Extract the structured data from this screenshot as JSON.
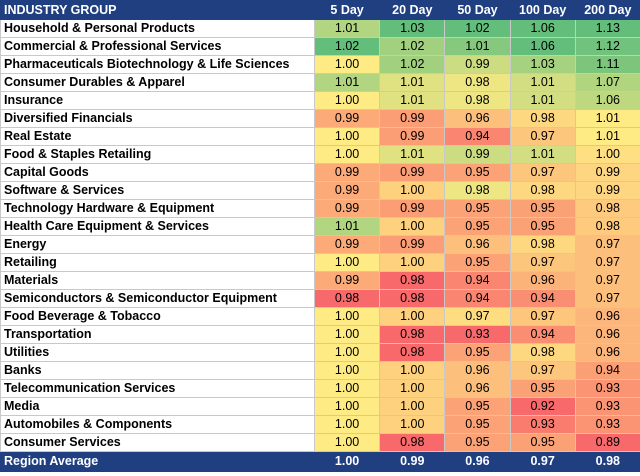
{
  "table": {
    "columns": [
      "INDUSTRY GROUP",
      "5 Day",
      "20 Day",
      "50 Day",
      "100 Day",
      "200 Day"
    ],
    "rows": [
      {
        "name": "Household & Personal Products",
        "values": [
          "1.01",
          "1.03",
          "1.02",
          "1.06",
          "1.13"
        ]
      },
      {
        "name": "Commercial & Professional Services",
        "values": [
          "1.02",
          "1.02",
          "1.01",
          "1.06",
          "1.12"
        ]
      },
      {
        "name": "Pharmaceuticals Biotechnology & Life Sciences",
        "values": [
          "1.00",
          "1.02",
          "0.99",
          "1.03",
          "1.11"
        ]
      },
      {
        "name": "Consumer Durables & Apparel",
        "values": [
          "1.01",
          "1.01",
          "0.98",
          "1.01",
          "1.07"
        ]
      },
      {
        "name": "Insurance",
        "values": [
          "1.00",
          "1.01",
          "0.98",
          "1.01",
          "1.06"
        ]
      },
      {
        "name": "Diversified Financials",
        "values": [
          "0.99",
          "0.99",
          "0.96",
          "0.98",
          "1.01"
        ]
      },
      {
        "name": "Real Estate",
        "values": [
          "1.00",
          "0.99",
          "0.94",
          "0.97",
          "1.01"
        ]
      },
      {
        "name": "Food & Staples Retailing",
        "values": [
          "1.00",
          "1.01",
          "0.99",
          "1.01",
          "1.00"
        ]
      },
      {
        "name": "Capital Goods",
        "values": [
          "0.99",
          "0.99",
          "0.95",
          "0.97",
          "0.99"
        ]
      },
      {
        "name": "Software & Services",
        "values": [
          "0.99",
          "1.00",
          "0.98",
          "0.98",
          "0.99"
        ]
      },
      {
        "name": "Technology Hardware & Equipment",
        "values": [
          "0.99",
          "0.99",
          "0.95",
          "0.95",
          "0.98"
        ]
      },
      {
        "name": "Health Care Equipment & Services",
        "values": [
          "1.01",
          "1.00",
          "0.95",
          "0.95",
          "0.98"
        ]
      },
      {
        "name": "Energy",
        "values": [
          "0.99",
          "0.99",
          "0.96",
          "0.98",
          "0.97"
        ]
      },
      {
        "name": "Retailing",
        "values": [
          "1.00",
          "1.00",
          "0.95",
          "0.97",
          "0.97"
        ]
      },
      {
        "name": "Materials",
        "values": [
          "0.99",
          "0.98",
          "0.94",
          "0.96",
          "0.97"
        ]
      },
      {
        "name": "Semiconductors & Semiconductor Equipment",
        "values": [
          "0.98",
          "0.98",
          "0.94",
          "0.94",
          "0.97"
        ]
      },
      {
        "name": "Food Beverage & Tobacco",
        "values": [
          "1.00",
          "1.00",
          "0.97",
          "0.97",
          "0.96"
        ]
      },
      {
        "name": "Transportation",
        "values": [
          "1.00",
          "0.98",
          "0.93",
          "0.94",
          "0.96"
        ]
      },
      {
        "name": "Utilities",
        "values": [
          "1.00",
          "0.98",
          "0.95",
          "0.98",
          "0.96"
        ]
      },
      {
        "name": "Banks",
        "values": [
          "1.00",
          "1.00",
          "0.96",
          "0.97",
          "0.94"
        ]
      },
      {
        "name": "Telecommunication Services",
        "values": [
          "1.00",
          "1.00",
          "0.96",
          "0.95",
          "0.93"
        ]
      },
      {
        "name": "Media",
        "values": [
          "1.00",
          "1.00",
          "0.95",
          "0.92",
          "0.93"
        ]
      },
      {
        "name": "Automobiles & Components",
        "values": [
          "1.00",
          "1.00",
          "0.95",
          "0.93",
          "0.93"
        ]
      },
      {
        "name": "Consumer Services",
        "values": [
          "1.00",
          "0.98",
          "0.95",
          "0.95",
          "0.89"
        ]
      }
    ],
    "footer": {
      "name": "Region Average",
      "values": [
        "1.00",
        "0.99",
        "0.96",
        "0.97",
        "0.98"
      ]
    }
  },
  "colors": {
    "header_bg": "#1f3f80",
    "scale_low": "#f8696b",
    "scale_mid": "#ffeb84",
    "scale_high": "#63be7b"
  }
}
